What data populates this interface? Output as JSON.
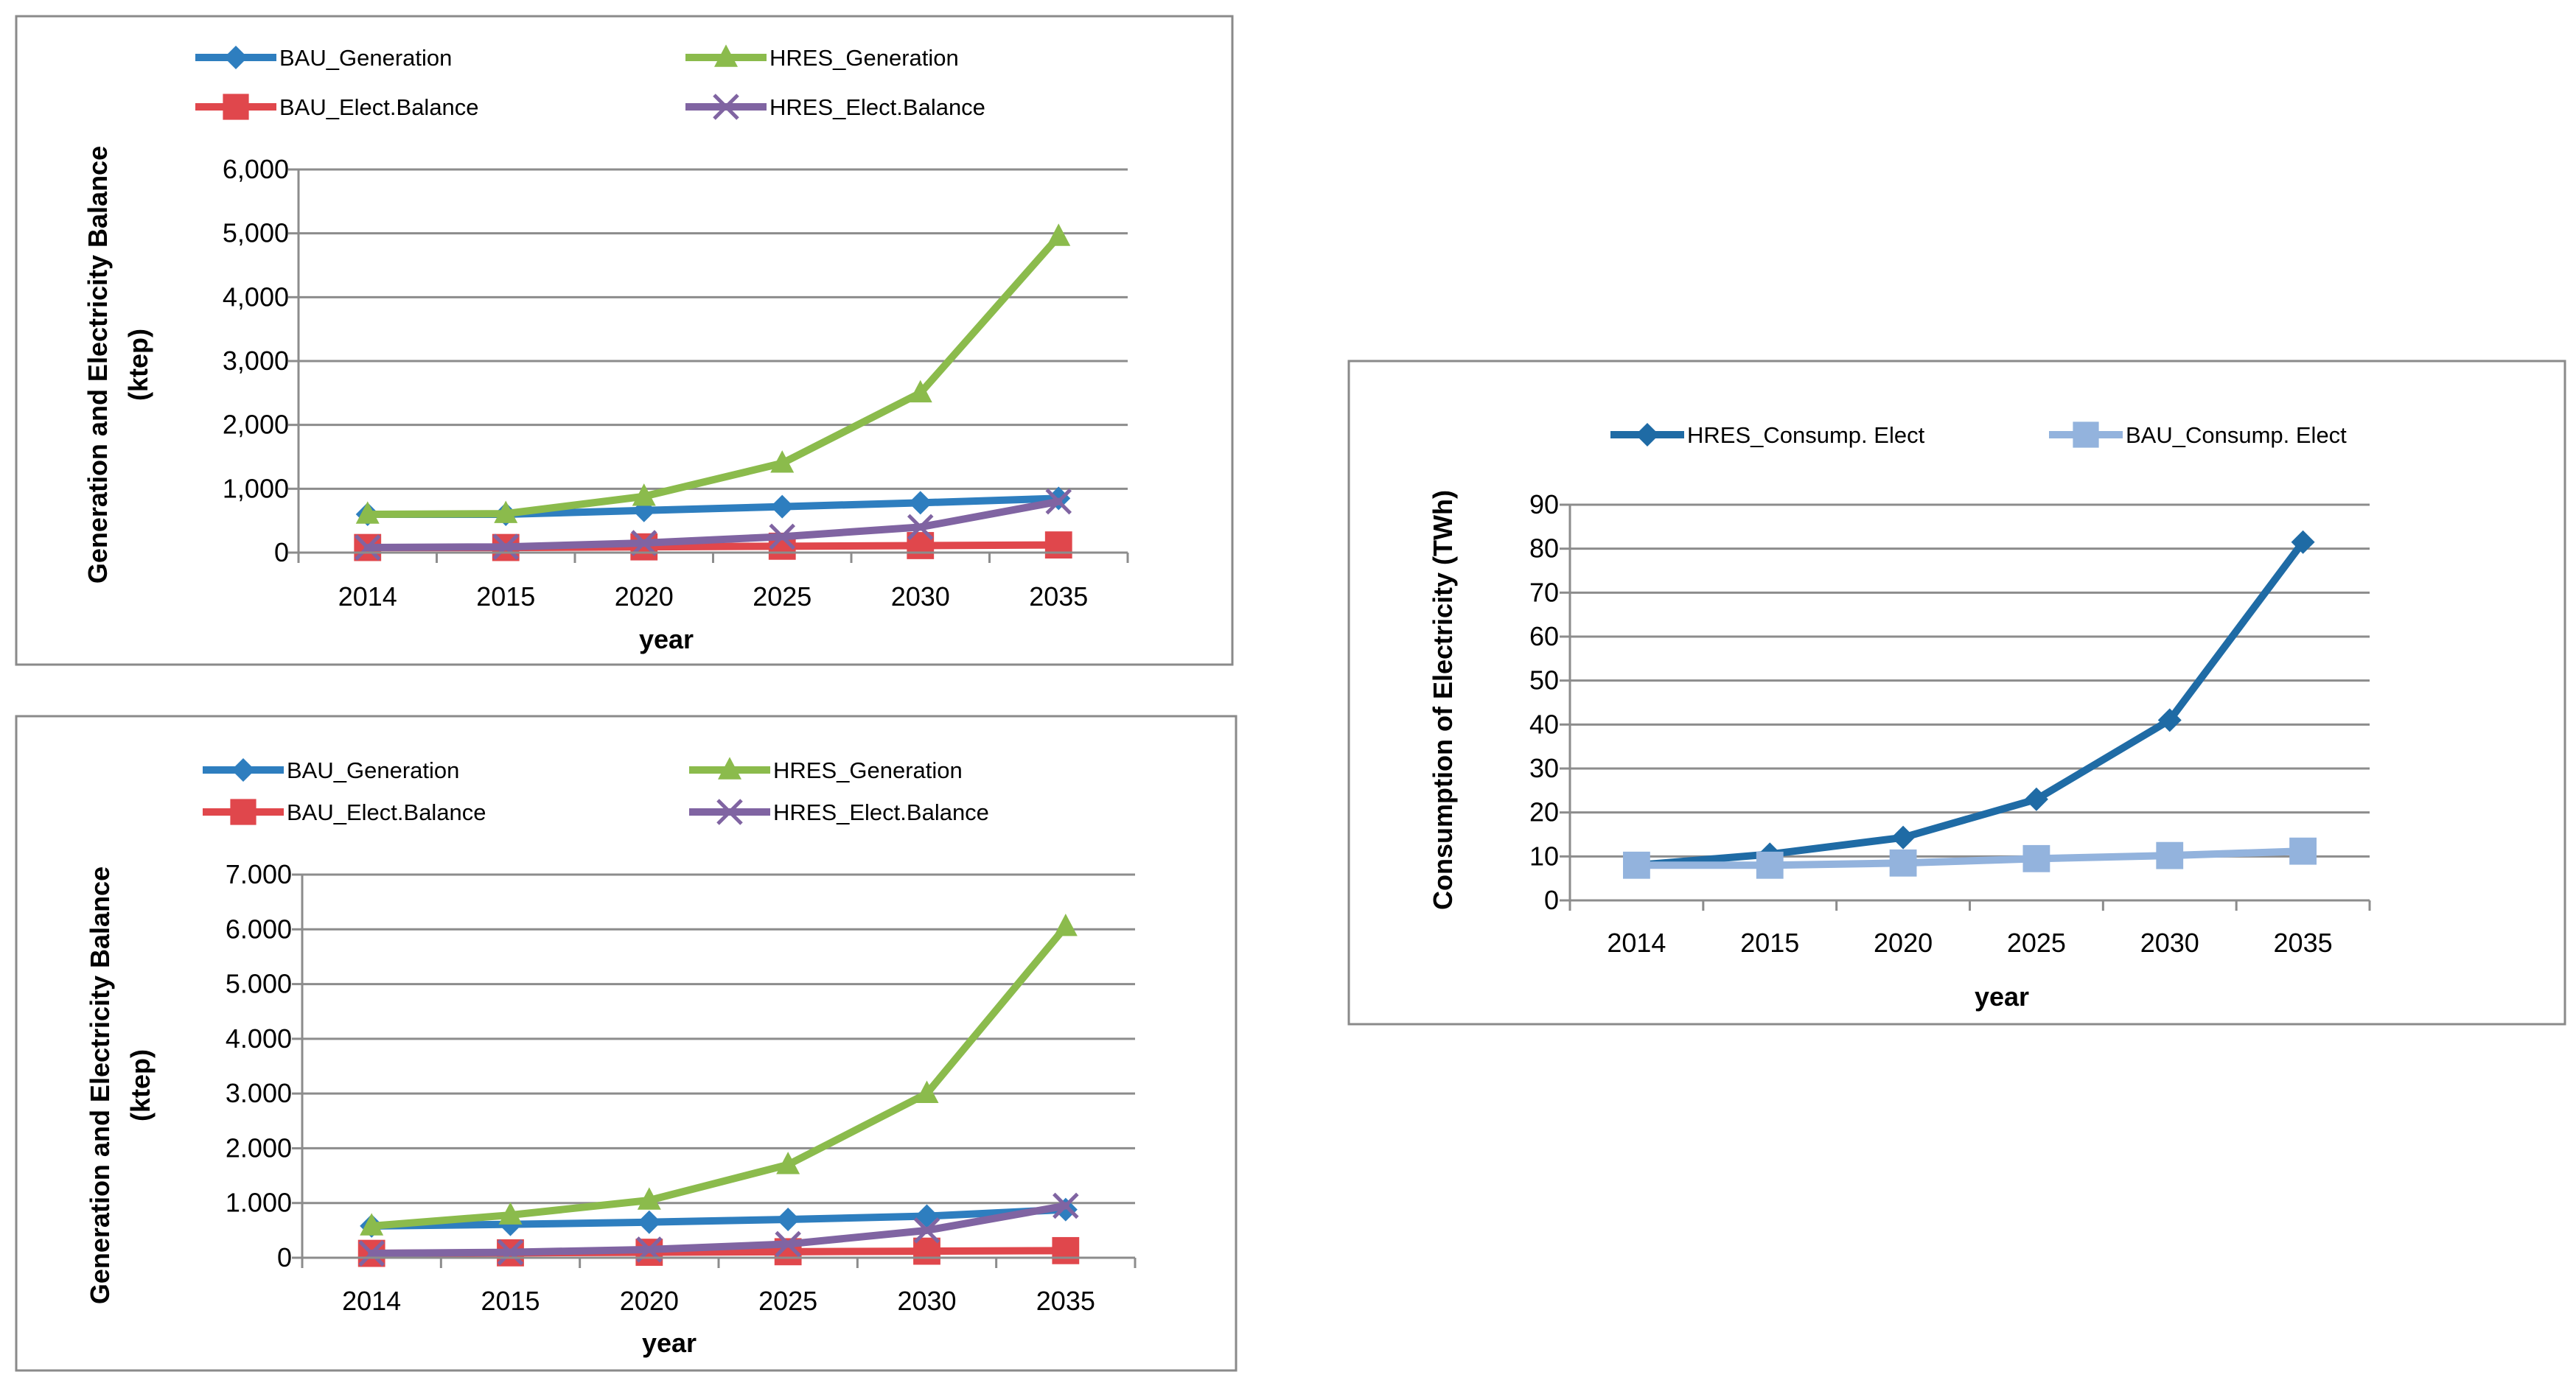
{
  "chart_data": [
    {
      "type": "line",
      "title": "",
      "categories": [
        "2014",
        "2015",
        "2020",
        "2025",
        "2030",
        "2035"
      ],
      "xlabel": "year",
      "ylabel": [
        "Generation and Electricity Balance",
        "(ktep)"
      ],
      "ylim": [
        0,
        6000
      ],
      "yticks": [
        "0",
        "1,000",
        "2,000",
        "3,000",
        "4,000",
        "5,000",
        "6,000"
      ],
      "grid": true,
      "legend": "top",
      "series": [
        {
          "name": "BAU_Generation",
          "color": "#2E7EBF",
          "marker": "diamond",
          "values": [
            600,
            600,
            660,
            720,
            780,
            850
          ]
        },
        {
          "name": "HRES_Generation",
          "color": "#8BBB4C",
          "marker": "triangle",
          "values": [
            600,
            610,
            880,
            1400,
            2500,
            4950
          ]
        },
        {
          "name": "BAU_Elect.Balance",
          "color": "#E0474C",
          "marker": "square",
          "values": [
            80,
            80,
            90,
            100,
            110,
            120
          ]
        },
        {
          "name": "HRES_Elect.Balance",
          "color": "#8064A2",
          "marker": "x",
          "values": [
            80,
            90,
            150,
            250,
            400,
            800
          ]
        }
      ]
    },
    {
      "type": "line",
      "title": "",
      "categories": [
        "2014",
        "2015",
        "2020",
        "2025",
        "2030",
        "2035"
      ],
      "xlabel": "year",
      "ylabel": [
        "Generation and Electricity Balance",
        "(ktep)"
      ],
      "ylim": [
        0,
        7000
      ],
      "yticks": [
        "0",
        "1.000",
        "2.000",
        "3.000",
        "4.000",
        "5.000",
        "6.000",
        "7.000"
      ],
      "grid": true,
      "legend": "top",
      "series": [
        {
          "name": "BAU_Generation",
          "color": "#2E7EBF",
          "marker": "diamond",
          "values": [
            580,
            610,
            650,
            700,
            760,
            880
          ]
        },
        {
          "name": "HRES_Generation",
          "color": "#8BBB4C",
          "marker": "triangle",
          "values": [
            580,
            780,
            1050,
            1700,
            3000,
            6050
          ]
        },
        {
          "name": "BAU_Elect.Balance",
          "color": "#E0474C",
          "marker": "square",
          "values": [
            80,
            90,
            100,
            110,
            120,
            130
          ]
        },
        {
          "name": "HRES_Elect.Balance",
          "color": "#8064A2",
          "marker": "x",
          "values": [
            80,
            100,
            150,
            250,
            500,
            950
          ]
        }
      ]
    },
    {
      "type": "line",
      "title": "",
      "categories": [
        "2014",
        "2015",
        "2020",
        "2025",
        "2030",
        "2035"
      ],
      "xlabel": "year",
      "ylabel": [
        "Consumption of Electricity (TWh)"
      ],
      "ylim": [
        0,
        90
      ],
      "yticks": [
        "0",
        "10",
        "20",
        "30",
        "40",
        "50",
        "60",
        "70",
        "80",
        "90"
      ],
      "grid": true,
      "legend": "top",
      "series": [
        {
          "name": "HRES_Consump. Elect",
          "color": "#1F6BA5",
          "marker": "diamond",
          "values": [
            8,
            10.5,
            14.3,
            23,
            41,
            81.5
          ]
        },
        {
          "name": "BAU_Consump. Elect",
          "color": "#93B3DD",
          "marker": "square",
          "values": [
            8,
            8,
            8.5,
            9.5,
            10.2,
            11.2
          ]
        }
      ]
    }
  ]
}
